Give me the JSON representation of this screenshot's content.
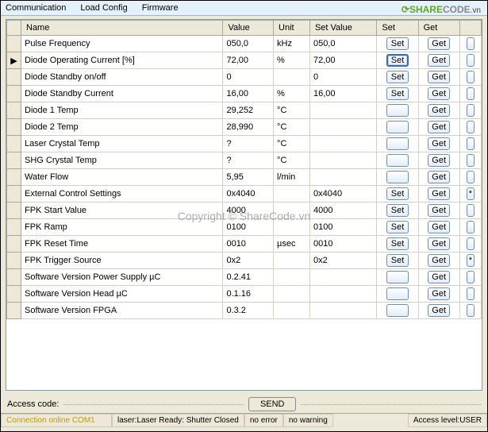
{
  "menu": {
    "communication": "Communication",
    "loadconfig": "Load Config",
    "firmware": "Firmware"
  },
  "logo": {
    "brand1": "SHARE",
    "brand2": "CODE",
    "ext": ".vn"
  },
  "columns": {
    "name": "Name",
    "value": "Value",
    "unit": "Unit",
    "setvalue": "Set Value",
    "set": "Set",
    "get": "Get"
  },
  "btn": {
    "set": "Set",
    "get": "Get",
    "ext": "*"
  },
  "rows": [
    {
      "name": "Pulse Frequency",
      "value": "050,0",
      "unit": "kHz",
      "setvalue": "050,0",
      "set": true,
      "get": true,
      "ext": false,
      "ptr": false,
      "sel": false
    },
    {
      "name": "Diode Operating Current [%]",
      "value": "72,00",
      "unit": "%",
      "setvalue": "72,00",
      "set": true,
      "get": true,
      "ext": false,
      "ptr": true,
      "sel": true
    },
    {
      "name": "Diode Standby on/off",
      "value": "0",
      "unit": "",
      "setvalue": "0",
      "set": true,
      "get": true,
      "ext": false,
      "ptr": false,
      "sel": false
    },
    {
      "name": "Diode Standby Current",
      "value": "16,00",
      "unit": "%",
      "setvalue": "16,00",
      "set": true,
      "get": true,
      "ext": false,
      "ptr": false,
      "sel": false
    },
    {
      "name": "Diode 1 Temp",
      "value": "29,252",
      "unit": "°C",
      "setvalue": "",
      "set": false,
      "get": true,
      "ext": false,
      "ptr": false,
      "sel": false
    },
    {
      "name": "Diode 2 Temp",
      "value": "28,990",
      "unit": "°C",
      "setvalue": "",
      "set": false,
      "get": true,
      "ext": false,
      "ptr": false,
      "sel": false
    },
    {
      "name": "Laser Crystal Temp",
      "value": "?",
      "unit": "°C",
      "setvalue": "",
      "set": false,
      "get": true,
      "ext": false,
      "ptr": false,
      "sel": false
    },
    {
      "name": "SHG Crystal Temp",
      "value": "?",
      "unit": "°C",
      "setvalue": "",
      "set": false,
      "get": true,
      "ext": false,
      "ptr": false,
      "sel": false
    },
    {
      "name": "Water Flow",
      "value": "5,95",
      "unit": "l/min",
      "setvalue": "",
      "set": false,
      "get": true,
      "ext": false,
      "ptr": false,
      "sel": false
    },
    {
      "name": "External Control Settings",
      "value": "0x4040",
      "unit": "",
      "setvalue": "0x4040",
      "set": true,
      "get": true,
      "ext": true,
      "ptr": false,
      "sel": false
    },
    {
      "name": "FPK Start Value",
      "value": "4000",
      "unit": "",
      "setvalue": "4000",
      "set": true,
      "get": true,
      "ext": false,
      "ptr": false,
      "sel": false
    },
    {
      "name": "FPK Ramp",
      "value": "0100",
      "unit": "",
      "setvalue": "0100",
      "set": true,
      "get": true,
      "ext": false,
      "ptr": false,
      "sel": false
    },
    {
      "name": "FPK Reset Time",
      "value": "0010",
      "unit": "µsec",
      "setvalue": "0010",
      "set": true,
      "get": true,
      "ext": false,
      "ptr": false,
      "sel": false
    },
    {
      "name": "FPK Trigger Source",
      "value": "0x2",
      "unit": "",
      "setvalue": "0x2",
      "set": true,
      "get": true,
      "ext": true,
      "ptr": false,
      "sel": false
    },
    {
      "name": "Software Version Power Supply µC",
      "value": "0.2.41",
      "unit": "",
      "setvalue": "",
      "set": false,
      "get": true,
      "ext": false,
      "ptr": false,
      "sel": false
    },
    {
      "name": "Software Version Head µC",
      "value": "0.1.16",
      "unit": "",
      "setvalue": "",
      "set": false,
      "get": true,
      "ext": false,
      "ptr": false,
      "sel": false
    },
    {
      "name": "Software Version FPGA",
      "value": "0.3.2",
      "unit": "",
      "setvalue": "",
      "set": false,
      "get": true,
      "ext": false,
      "ptr": false,
      "sel": false
    }
  ],
  "access": {
    "label": "Access code:",
    "send": "SEND"
  },
  "status": {
    "conn": "Connection online COM1",
    "laser": "laser:Laser Ready: Shutter Closed",
    "err": "no error",
    "warn": "no warning",
    "level": "Access level:USER"
  },
  "watermark": "Copyright © ShareCode.vn",
  "watermark2": "ShareCode.vn",
  "colwidths": {
    "rowhdr": 18,
    "name": 120,
    "value": 58,
    "unit": 50,
    "setvalue": 70,
    "set": 40,
    "get": 40,
    "ext": 22
  }
}
